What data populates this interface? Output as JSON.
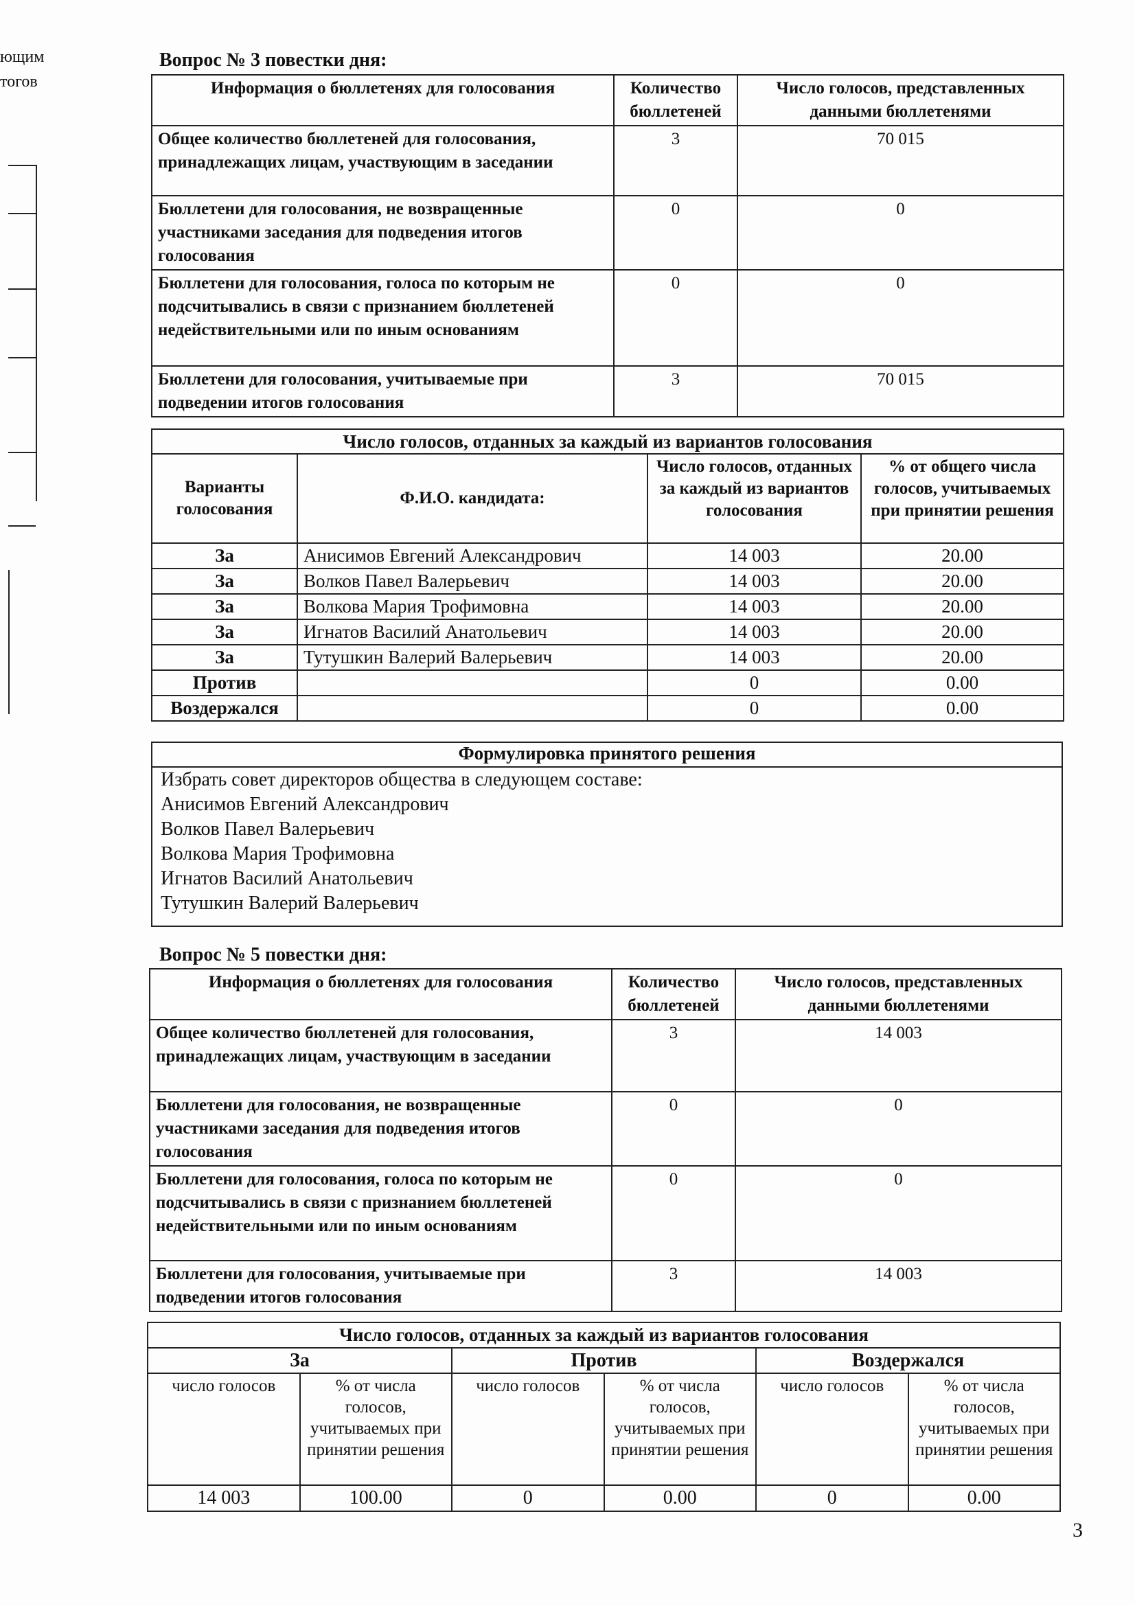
{
  "margin_fragments": [
    "ющим",
    "тогов"
  ],
  "q3": {
    "title": "Вопрос № 3 повестки дня:",
    "ballots": {
      "headers": [
        "Информация о бюллетенях для голосования",
        "Количество бюллетеней",
        "Число голосов, представленных данными бюллетенями"
      ],
      "rows": [
        {
          "label": "Общее количество бюллетеней для голосования, принадлежащих лицам, участвующим в заседании",
          "count": "3",
          "votes": "70 015"
        },
        {
          "label": "Бюллетени для голосования, не возвращенные участниками заседания для подведения итогов голосования",
          "count": "0",
          "votes": "0"
        },
        {
          "label": "Бюллетени для голосования, голоса по которым не подсчитывались в связи с признанием бюллетеней недействительными или по иным основаниям",
          "count": "0",
          "votes": "0"
        },
        {
          "label": "Бюллетени для голосования, учитываемые при подведении итогов голосования",
          "count": "3",
          "votes": "70 015"
        }
      ]
    },
    "results": {
      "title": "Число голосов, отданных за каждый из вариантов голосования",
      "headers": [
        "Варианты голосования",
        "Ф.И.О. кандидата:",
        "Число голосов, отданных за каждый из вариантов голосования",
        "% от общего числа голосов, учитываемых при принятии решения"
      ],
      "rows": [
        {
          "option": "За",
          "name": "Анисимов Евгений Александрович",
          "votes": "14 003",
          "pct": "20.00"
        },
        {
          "option": "За",
          "name": "Волков Павел Валерьевич",
          "votes": "14 003",
          "pct": "20.00"
        },
        {
          "option": "За",
          "name": "Волкова Мария Трофимовна",
          "votes": "14 003",
          "pct": "20.00"
        },
        {
          "option": "За",
          "name": "Игнатов Василий Анатольевич",
          "votes": "14 003",
          "pct": "20.00"
        },
        {
          "option": "За",
          "name": "Тутушкин Валерий Валерьевич",
          "votes": "14 003",
          "pct": "20.00"
        },
        {
          "option": "Против",
          "name": "",
          "votes": "0",
          "pct": "0.00"
        },
        {
          "option": "Воздержался",
          "name": "",
          "votes": "0",
          "pct": "0.00"
        }
      ]
    },
    "decision": {
      "title": "Формулировка принятого решения",
      "lines": [
        "Избрать совет директоров общества в следующем составе:",
        "Анисимов Евгений Александрович",
        "Волков Павел Валерьевич",
        "Волкова Мария Трофимовна",
        "Игнатов Василий Анатольевич",
        "Тутушкин Валерий Валерьевич"
      ]
    }
  },
  "q5": {
    "title": "Вопрос № 5 повестки дня:",
    "ballots": {
      "headers": [
        "Информация о бюллетенях для голосования",
        "Количество бюллетеней",
        "Число голосов, представленных данными бюллетенями"
      ],
      "rows": [
        {
          "label": "Общее количество бюллетеней для голосования, принадлежащих лицам, участвующим в заседании",
          "count": "3",
          "votes": "14 003"
        },
        {
          "label": "Бюллетени для голосования, не возвращенные участниками заседания для подведения итогов голосования",
          "count": "0",
          "votes": "0"
        },
        {
          "label": "Бюллетени для голосования, голоса по которым не подсчитывались в связи с признанием бюллетеней недействительными или по иным основаниям",
          "count": "0",
          "votes": "0"
        },
        {
          "label": "Бюллетени для голосования, учитываемые при подведении итогов голосования",
          "count": "3",
          "votes": "14 003"
        }
      ]
    },
    "results": {
      "title": "Число голосов, отданных за каждый из вариантов голосования",
      "groups": [
        "За",
        "Против",
        "Воздержался"
      ],
      "sub_count": "число голосов",
      "sub_pct": "% от числа голосов, учитываемых при принятии решения",
      "values": [
        "14 003",
        "100.00",
        "0",
        "0.00",
        "0",
        "0.00"
      ]
    }
  },
  "page_number": "3"
}
